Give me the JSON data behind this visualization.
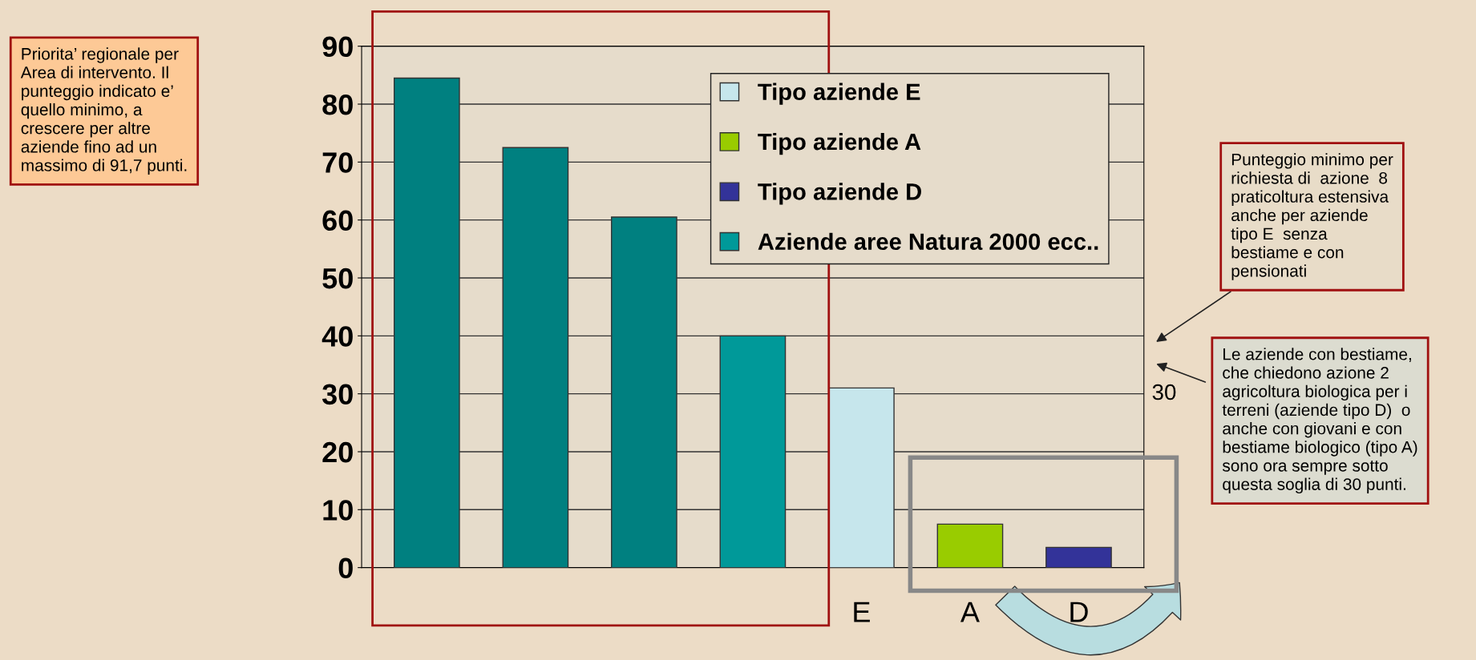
{
  "chart_data": {
    "type": "bar",
    "categories": [
      null,
      null,
      null,
      null,
      "E",
      "A",
      "D"
    ],
    "series": [
      {
        "name": "Tipo aziende E",
        "color": "#c6e6ec",
        "values": [
          null,
          null,
          null,
          null,
          31,
          null,
          null
        ]
      },
      {
        "name": "Tipo aziende A",
        "color": "#99cc00",
        "values": [
          null,
          null,
          null,
          null,
          null,
          7.5,
          null
        ]
      },
      {
        "name": "Tipo aziende D",
        "color": "#333399",
        "values": [
          null,
          null,
          null,
          null,
          null,
          null,
          3.5
        ]
      },
      {
        "name": "Aziende aree Natura 2000 ecc..",
        "color": "#009999",
        "colors": [
          "#008080",
          "#008080",
          "#008080",
          "#009999",
          null,
          null,
          null
        ],
        "values": [
          84.5,
          72.5,
          60.5,
          40,
          null,
          null,
          null
        ]
      }
    ],
    "ylim": [
      0,
      90
    ],
    "yticks": [
      0,
      10,
      20,
      30,
      40,
      50,
      60,
      70,
      80,
      90
    ],
    "grid": "y",
    "legend": "top right",
    "annotations": [
      "Priorita’ regionale per\nArea di intervento. Il\npunteggio indicato e’\nquello minimo, a\ncrescere per altre\naziende fino ad un\nmassimo di 91,7 punti.",
      "Punteggio minimo per\nrichiesta di  azione  8\npraticoltura estensiva\nanche per aziende\ntipo E  senza\nbestiame e con\npensionati",
      "Le aziende con bestiame,\nche chiedono azione 2\nagricoltura biologica per i\nterreni (aziende tipo D)  o\nanche con giovani e con\nbestiame biologico (tipo A)\nsono ora sempre sotto\nquesta soglia di 30 punti.",
      "30"
    ]
  }
}
